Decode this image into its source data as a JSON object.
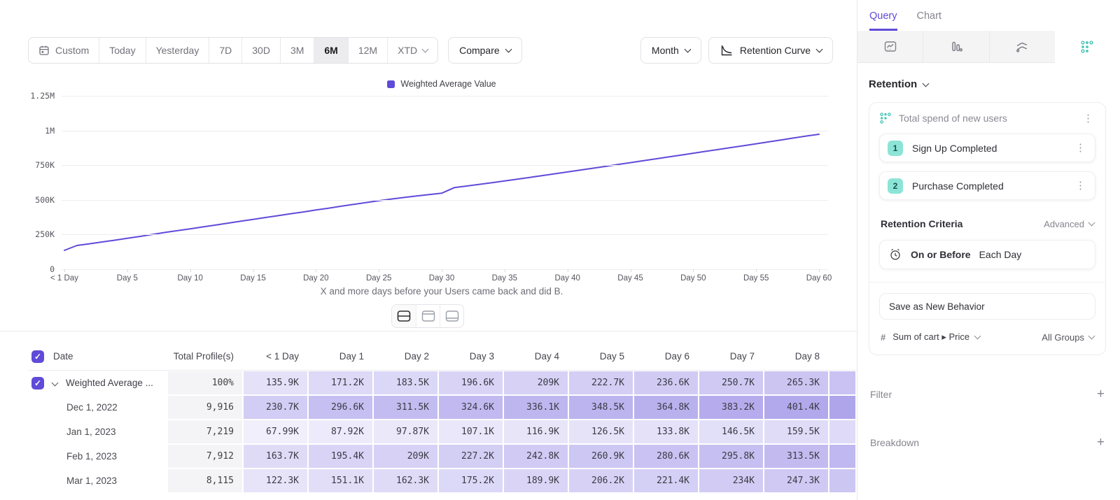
{
  "colors": {
    "accent": "#5f4bd8",
    "teal": "#45c4b5",
    "teal_badge": "#8ce4d6"
  },
  "toolbar": {
    "ranges": [
      "Custom",
      "Today",
      "Yesterday",
      "7D",
      "30D",
      "3M",
      "6M",
      "12M",
      "XTD"
    ],
    "active_range": "6M",
    "compare_label": "Compare",
    "granularity_label": "Month",
    "chart_type_label": "Retention Curve"
  },
  "chart": {
    "legend": "Weighted Average Value",
    "caption": "X and more days before your Users came back and did B.",
    "y_ticks": [
      "1.25M",
      "1M",
      "750K",
      "500K",
      "250K",
      "0"
    ],
    "x_ticks": [
      "< 1 Day",
      "Day 5",
      "Day 10",
      "Day 15",
      "Day 20",
      "Day 25",
      "Day 30",
      "Day 35",
      "Day 40",
      "Day 45",
      "Day 50",
      "Day 55",
      "Day 60"
    ]
  },
  "chart_data": {
    "type": "line",
    "title": "",
    "xlabel": "X and more days before your Users came back and did B.",
    "ylabel": "",
    "x_start_day": 0,
    "x_step_days": 1,
    "xlim_days": [
      0,
      60
    ],
    "ylim_k": [
      0,
      1250
    ],
    "legend_position": "top-center",
    "grid": "horizontal",
    "series": [
      {
        "name": "Weighted Average Value",
        "color": "#5f4bd8",
        "values_k": [
          135.9,
          171.2,
          183.5,
          196.6,
          209,
          222.7,
          236.6,
          250.7,
          265.3,
          278,
          291,
          305,
          318,
          332,
          346,
          359,
          373,
          386,
          400,
          413,
          427,
          440,
          454,
          467,
          481,
          494,
          506,
          517,
          528,
          538,
          548,
          588,
          600,
          612,
          624,
          636,
          649,
          662,
          675,
          688,
          701,
          714,
          728,
          741,
          755,
          768,
          782,
          795,
          809,
          822,
          836,
          850,
          863,
          877,
          890,
          904,
          918,
          932,
          946,
          960,
          973
        ]
      }
    ]
  },
  "table": {
    "columns": {
      "date": "Date",
      "total": "Total Profile(s)",
      "days": [
        "< 1 Day",
        "Day 1",
        "Day 2",
        "Day 3",
        "Day 4",
        "Day 5",
        "Day 6",
        "Day 7",
        "Day 8"
      ]
    },
    "rows": [
      {
        "label": "Weighted Average ...",
        "total": "100%",
        "values": [
          "135.9K",
          "171.2K",
          "183.5K",
          "196.6K",
          "209K",
          "222.7K",
          "236.6K",
          "250.7K",
          "265.3K"
        ]
      },
      {
        "label": "Dec 1, 2022",
        "total": "9,916",
        "values": [
          "230.7K",
          "296.6K",
          "311.5K",
          "324.6K",
          "336.1K",
          "348.5K",
          "364.8K",
          "383.2K",
          "401.4K"
        ]
      },
      {
        "label": "Jan 1, 2023",
        "total": "7,219",
        "values": [
          "67.99K",
          "87.92K",
          "97.87K",
          "107.1K",
          "116.9K",
          "126.5K",
          "133.8K",
          "146.5K",
          "159.5K"
        ]
      },
      {
        "label": "Feb 1, 2023",
        "total": "7,912",
        "values": [
          "163.7K",
          "195.4K",
          "209K",
          "227.2K",
          "242.8K",
          "260.9K",
          "280.6K",
          "295.8K",
          "313.5K"
        ]
      },
      {
        "label": "Mar 1, 2023",
        "total": "8,115",
        "values": [
          "122.3K",
          "151.1K",
          "162.3K",
          "175.2K",
          "189.9K",
          "206.2K",
          "221.4K",
          "234K",
          "247.3K"
        ]
      }
    ]
  },
  "sidebar": {
    "tabs": {
      "query": "Query",
      "chart": "Chart"
    },
    "active_tab": "Query",
    "icon_tabs": [
      "insights",
      "funnels",
      "flows",
      "retention"
    ],
    "active_icon_tab": "retention",
    "section_label": "Retention",
    "behavior": {
      "title": "Total spend of new users",
      "steps": [
        {
          "num": "1",
          "label": "Sign Up Completed"
        },
        {
          "num": "2",
          "label": "Purchase Completed"
        }
      ]
    },
    "criteria": {
      "label": "Retention Criteria",
      "mode": "Advanced",
      "condition_bold": "On or Before",
      "condition_rest": "Each Day"
    },
    "save_button": "Save as New Behavior",
    "measure": {
      "hash": "#",
      "label": "Sum of cart ▸ Price",
      "groups": "All Groups"
    },
    "filter_label": "Filter",
    "breakdown_label": "Breakdown"
  }
}
